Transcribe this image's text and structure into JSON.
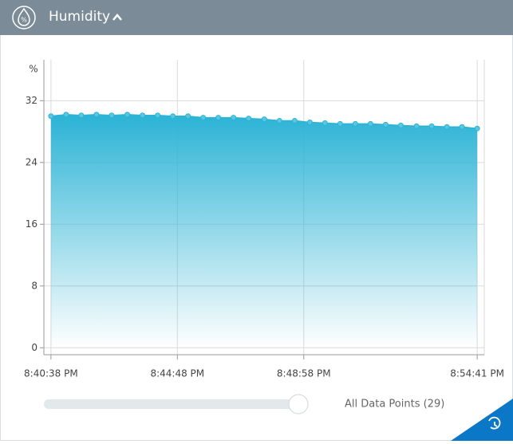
{
  "header": {
    "title": "Humidity"
  },
  "chart_data": {
    "type": "area",
    "y_label": "%",
    "x": [
      "8:40:38 PM",
      "8:41:08 PM",
      "8:41:38 PM",
      "8:42:08 PM",
      "8:42:38 PM",
      "8:43:09 PM",
      "8:43:39 PM",
      "8:44:09 PM",
      "8:44:39 PM",
      "8:45:09 PM",
      "8:45:39 PM",
      "8:46:09 PM",
      "8:46:39 PM",
      "8:47:09 PM",
      "8:47:40 PM",
      "8:48:10 PM",
      "8:48:40 PM",
      "8:49:10 PM",
      "8:49:40 PM",
      "8:50:10 PM",
      "8:50:40 PM",
      "8:51:10 PM",
      "8:51:40 PM",
      "8:52:10 PM",
      "8:52:41 PM",
      "8:53:11 PM",
      "8:53:41 PM",
      "8:54:11 PM",
      "8:54:41 PM"
    ],
    "values": [
      30.0,
      30.2,
      30.1,
      30.2,
      30.1,
      30.2,
      30.1,
      30.1,
      30.0,
      30.0,
      29.8,
      29.8,
      29.8,
      29.7,
      29.6,
      29.4,
      29.4,
      29.2,
      29.1,
      29.0,
      29.0,
      29.0,
      28.9,
      28.8,
      28.7,
      28.7,
      28.6,
      28.6,
      28.4
    ],
    "color": "#2bb3d5",
    "xlim": [
      "8:40:24 PM",
      "8:54:55 PM"
    ],
    "xticks": [
      "8:40:38 PM",
      "8:44:48 PM",
      "8:48:58 PM",
      "8:54:41 PM"
    ],
    "ylim": [
      -0.9,
      37.3
    ],
    "yticks": [
      0,
      8,
      16,
      24,
      32
    ],
    "grid": true
  },
  "controls": {
    "range_label": "All Data Points (29)"
  }
}
